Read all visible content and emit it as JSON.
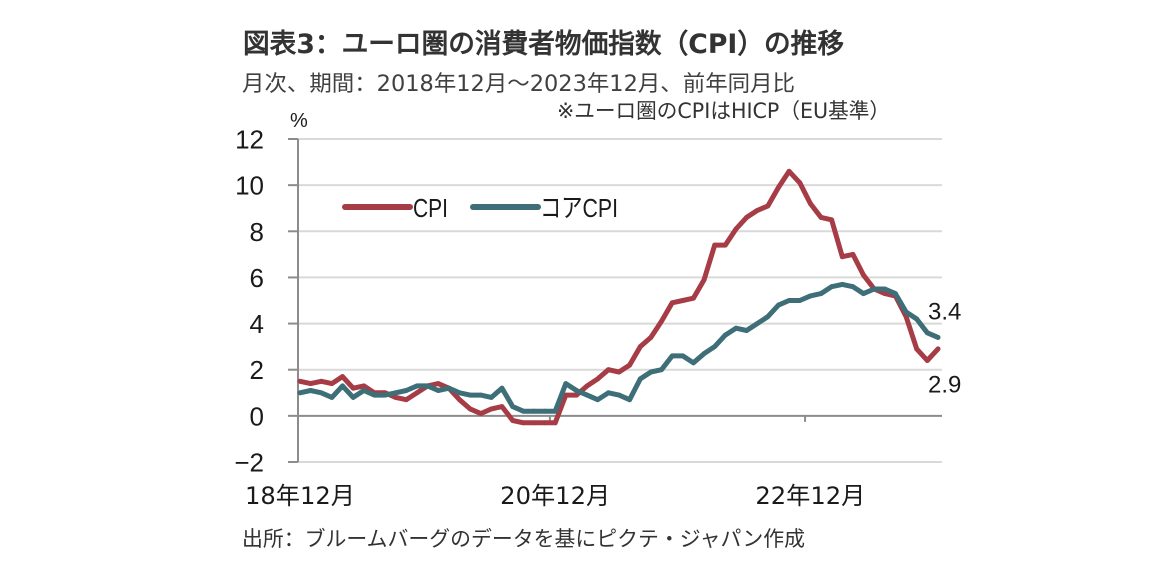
{
  "header": {
    "title": "図表3：ユーロ圏の消費者物価指数（CPI）の推移",
    "subtitle": "月次、期間：2018年12月～2023年12月、前年同月比",
    "note": "※ユーロ圏のCPIはHICP（EU基準）"
  },
  "footer": {
    "source": "出所：ブルームバーグのデータを基にピクテ・ジャパン作成"
  },
  "colors": {
    "grid": "#d9d9d9",
    "axis": "#8c8c8c"
  },
  "chart_data": {
    "type": "line",
    "title": "図表3：ユーロ圏の消費者物価指数（CPI）の推移",
    "subtitle": "月次、期間：2018年12月～2023年12月、前年同月比",
    "xlabel": "",
    "ylabel": "%",
    "ylim": [
      -2,
      12
    ],
    "yticks": [
      12,
      10,
      8,
      6,
      4,
      2,
      0,
      -2
    ],
    "ytick_labels": [
      "12",
      "10",
      "8",
      "6",
      "4",
      "2",
      "0",
      "−2"
    ],
    "grid": true,
    "legend": "top-left",
    "x": [
      "2018-12",
      "2019-01",
      "2019-02",
      "2019-03",
      "2019-04",
      "2019-05",
      "2019-06",
      "2019-07",
      "2019-08",
      "2019-09",
      "2019-10",
      "2019-11",
      "2019-12",
      "2020-01",
      "2020-02",
      "2020-03",
      "2020-04",
      "2020-05",
      "2020-06",
      "2020-07",
      "2020-08",
      "2020-09",
      "2020-10",
      "2020-11",
      "2020-12",
      "2021-01",
      "2021-02",
      "2021-03",
      "2021-04",
      "2021-05",
      "2021-06",
      "2021-07",
      "2021-08",
      "2021-09",
      "2021-10",
      "2021-11",
      "2021-12",
      "2022-01",
      "2022-02",
      "2022-03",
      "2022-04",
      "2022-05",
      "2022-06",
      "2022-07",
      "2022-08",
      "2022-09",
      "2022-10",
      "2022-11",
      "2022-12",
      "2023-01",
      "2023-02",
      "2023-03",
      "2023-04",
      "2023-05",
      "2023-06",
      "2023-07",
      "2023-08",
      "2023-09",
      "2023-10",
      "2023-11",
      "2023-12"
    ],
    "xticks": [
      {
        "index": 0,
        "x": "2018-12",
        "label": "18年12月"
      },
      {
        "index": 24,
        "x": "2020-12",
        "label": "20年12月"
      },
      {
        "index": 48,
        "x": "2022-12",
        "label": "22年12月"
      }
    ],
    "series": [
      {
        "name": "CPI",
        "color": "#a63c45",
        "values": [
          1.5,
          1.4,
          1.5,
          1.4,
          1.7,
          1.2,
          1.3,
          1.0,
          1.0,
          0.8,
          0.7,
          1.0,
          1.3,
          1.4,
          1.2,
          0.7,
          0.3,
          0.1,
          0.3,
          0.4,
          -0.2,
          -0.3,
          -0.3,
          -0.3,
          -0.3,
          0.9,
          0.9,
          1.3,
          1.6,
          2.0,
          1.9,
          2.2,
          3.0,
          3.4,
          4.1,
          4.9,
          5.0,
          5.1,
          5.9,
          7.4,
          7.4,
          8.1,
          8.6,
          8.9,
          9.1,
          9.9,
          10.6,
          10.1,
          9.2,
          8.6,
          8.5,
          6.9,
          7.0,
          6.1,
          5.5,
          5.3,
          5.2,
          4.3,
          2.9,
          2.4,
          2.9
        ]
      },
      {
        "name": "コアCPI",
        "color": "#3e6f78",
        "values": [
          1.0,
          1.1,
          1.0,
          0.8,
          1.3,
          0.8,
          1.1,
          0.9,
          0.9,
          1.0,
          1.1,
          1.3,
          1.3,
          1.1,
          1.2,
          1.0,
          0.9,
          0.9,
          0.8,
          1.2,
          0.4,
          0.2,
          0.2,
          0.2,
          0.2,
          1.4,
          1.1,
          0.9,
          0.7,
          1.0,
          0.9,
          0.7,
          1.6,
          1.9,
          2.0,
          2.6,
          2.6,
          2.3,
          2.7,
          3.0,
          3.5,
          3.8,
          3.7,
          4.0,
          4.3,
          4.8,
          5.0,
          5.0,
          5.2,
          5.3,
          5.6,
          5.7,
          5.6,
          5.3,
          5.5,
          5.5,
          5.3,
          4.5,
          4.2,
          3.6,
          3.4
        ]
      }
    ],
    "annotations": [
      {
        "series": "コアCPI",
        "x": "2023-12",
        "value": 3.4,
        "label": "3.4"
      },
      {
        "series": "CPI",
        "x": "2023-12",
        "value": 2.9,
        "label": "2.9"
      }
    ],
    "note": "※ユーロ圏のCPIはHICP（EU基準）",
    "source": "出所：ブルームバーグのデータを基にピクテ・ジャパン作成"
  }
}
